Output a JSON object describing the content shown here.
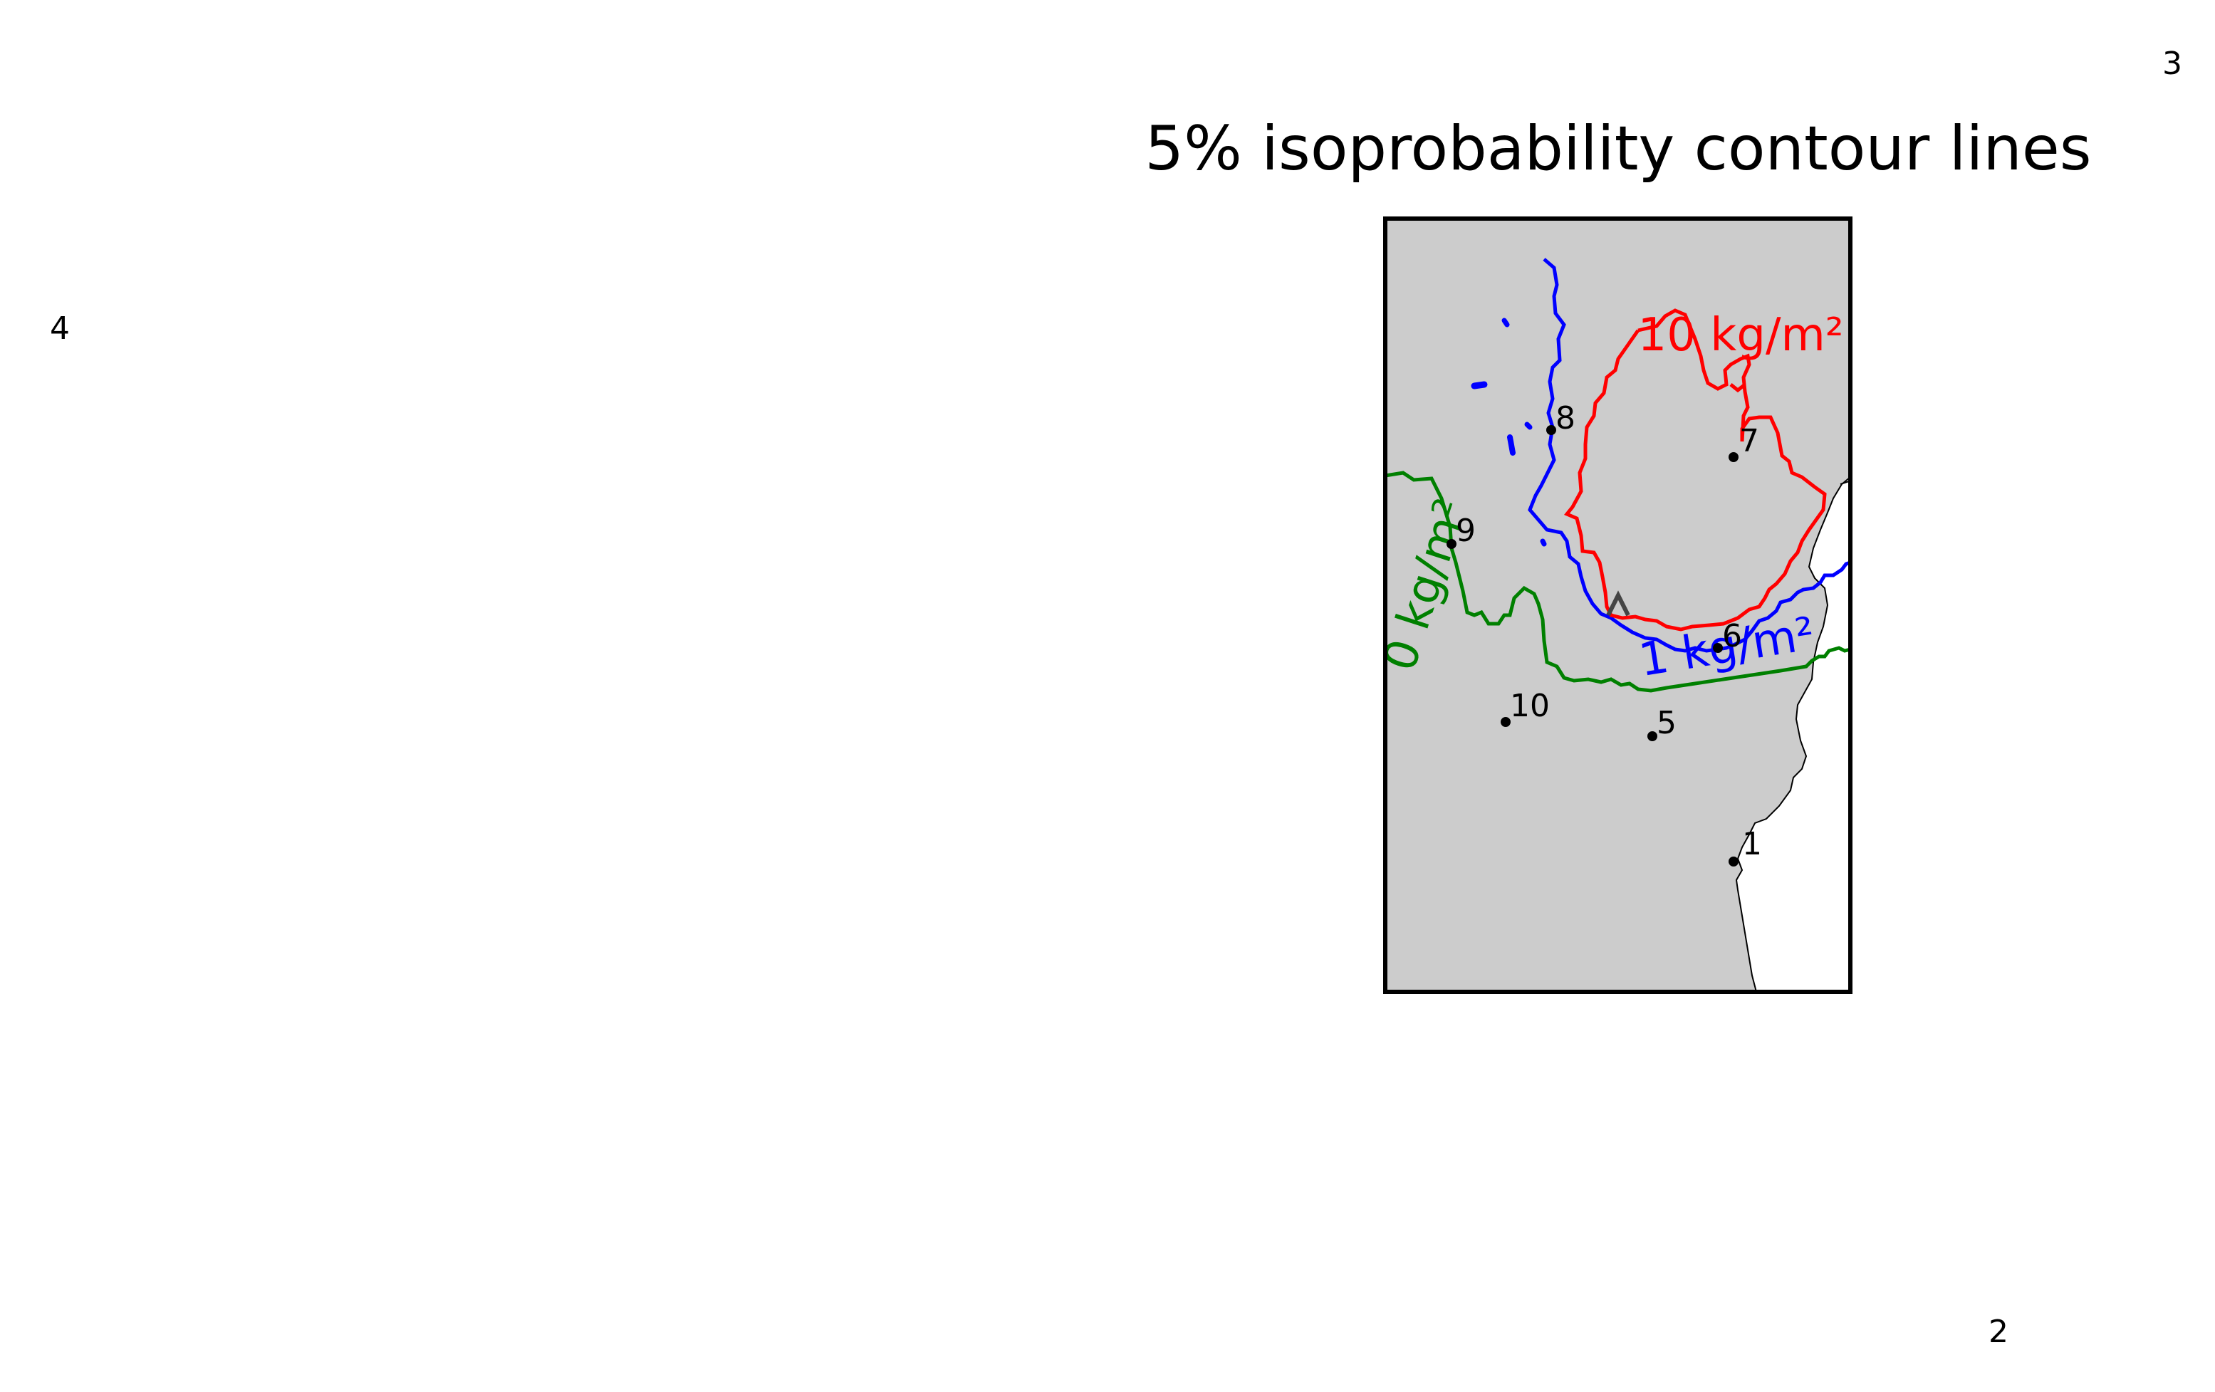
{
  "map": {
    "title": "5% isoprobability contour lines",
    "stray_labels": [
      "3",
      "4",
      "2"
    ],
    "colors": {
      "land": "#cccccc",
      "sea": "#ffffff",
      "frame": "#000000",
      "contour_0": "#008000",
      "contour_1": "#0000ff",
      "contour_10": "#ff0000",
      "vent": "#444444"
    },
    "contours": [
      {
        "label": "0 kg/m²",
        "color": "green"
      },
      {
        "label": "1 kg/m²",
        "color": "blue"
      },
      {
        "label": "10 kg/m²",
        "color": "red"
      }
    ],
    "sites": [
      "1",
      "5",
      "6",
      "7",
      "8",
      "9",
      "10"
    ],
    "vent_icon": "volcano-triangle-icon"
  }
}
